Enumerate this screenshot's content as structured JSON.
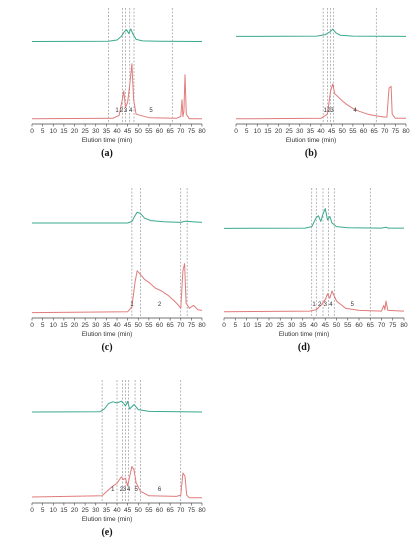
{
  "colors": {
    "trace_top": "#3aa88f",
    "trace_bottom": "#e07b7b",
    "divider": "#888888",
    "axis": "#444444"
  },
  "chart_data": [
    {
      "type": "line",
      "panel_label": "(a)",
      "xlabel": "Elution time (min)",
      "xlim": [
        0,
        80
      ],
      "x_ticks": [
        "0",
        "5",
        "10",
        "15",
        "20",
        "25",
        "30",
        "35",
        "40",
        "45",
        "50",
        "55",
        "60",
        "65",
        "70",
        "75",
        "80"
      ],
      "dividers": [
        36,
        42.5,
        44,
        46,
        48,
        66
      ],
      "fraction_labels": [
        {
          "text": "1",
          "x": 40
        },
        {
          "text": "2",
          "x": 42
        },
        {
          "text": "3",
          "x": 44
        },
        {
          "text": "4",
          "x": 46.5
        },
        {
          "text": "5",
          "x": 56
        }
      ],
      "series": [
        {
          "role": "top",
          "points": [
            [
              0,
              0.55
            ],
            [
              36,
              0.56
            ],
            [
              40,
              0.6
            ],
            [
              42,
              0.72
            ],
            [
              43.5,
              0.88
            ],
            [
              44.5,
              0.94
            ],
            [
              45.5,
              0.82
            ],
            [
              46.5,
              0.97
            ],
            [
              47.5,
              0.8
            ],
            [
              49,
              0.62
            ],
            [
              52,
              0.57
            ],
            [
              60,
              0.56
            ],
            [
              80,
              0.55
            ]
          ]
        },
        {
          "role": "bottom",
          "points": [
            [
              0,
              0.02
            ],
            [
              38,
              0.03
            ],
            [
              41,
              0.08
            ],
            [
              42.5,
              0.35
            ],
            [
              43.2,
              0.5
            ],
            [
              44,
              0.22
            ],
            [
              45,
              0.3
            ],
            [
              46,
              0.6
            ],
            [
              47,
              0.97
            ],
            [
              47.8,
              0.35
            ],
            [
              49,
              0.1
            ],
            [
              55,
              0.04
            ],
            [
              68,
              0.03
            ],
            [
              70,
              0.06
            ],
            [
              70.6,
              0.35
            ],
            [
              71,
              0.06
            ],
            [
              71.5,
              0.15
            ],
            [
              72,
              0.78
            ],
            [
              72.6,
              0.1
            ],
            [
              74,
              0.02
            ],
            [
              80,
              0.02
            ]
          ]
        }
      ]
    },
    {
      "type": "line",
      "panel_label": "(b)",
      "xlabel": "Elution time (min)",
      "xlim": [
        0,
        80
      ],
      "x_ticks": [
        "0",
        "5",
        "10",
        "15",
        "20",
        "25",
        "30",
        "35",
        "40",
        "45",
        "50",
        "55",
        "60",
        "65",
        "70",
        "75",
        "80"
      ],
      "dividers": [
        41,
        43,
        44.5,
        46,
        66
      ],
      "fraction_labels": [
        {
          "text": "1",
          "x": 42
        },
        {
          "text": "2",
          "x": 43.8
        },
        {
          "text": "3",
          "x": 45.2
        },
        {
          "text": "4",
          "x": 56
        }
      ],
      "series": [
        {
          "role": "top",
          "points": [
            [
              0,
              0.72
            ],
            [
              38,
              0.73
            ],
            [
              42,
              0.78
            ],
            [
              44,
              0.86
            ],
            [
              45.5,
              0.96
            ],
            [
              47,
              0.84
            ],
            [
              49,
              0.76
            ],
            [
              55,
              0.73
            ],
            [
              80,
              0.72
            ]
          ]
        },
        {
          "role": "bottom",
          "points": [
            [
              0,
              0.02
            ],
            [
              40,
              0.03
            ],
            [
              43,
              0.1
            ],
            [
              44.5,
              0.5
            ],
            [
              45.5,
              0.62
            ],
            [
              46.5,
              0.45
            ],
            [
              48,
              0.4
            ],
            [
              50,
              0.33
            ],
            [
              52,
              0.27
            ],
            [
              55,
              0.2
            ],
            [
              58,
              0.15
            ],
            [
              62,
              0.1
            ],
            [
              66,
              0.07
            ],
            [
              70,
              0.05
            ],
            [
              71,
              0.05
            ],
            [
              72,
              0.55
            ],
            [
              73,
              0.58
            ],
            [
              73.5,
              0.1
            ],
            [
              75,
              0.03
            ],
            [
              80,
              0.03
            ]
          ]
        }
      ]
    },
    {
      "type": "line",
      "panel_label": "(c)",
      "xlabel": "Elution time (min)",
      "xlim": [
        0,
        80
      ],
      "x_ticks": [
        "0",
        "5",
        "10",
        "15",
        "20",
        "25",
        "30",
        "35",
        "40",
        "45",
        "50",
        "55",
        "60",
        "65",
        "70",
        "75",
        "80"
      ],
      "dividers": [
        47,
        51,
        70,
        73
      ],
      "fraction_labels": [
        {
          "text": "1",
          "x": 47
        },
        {
          "text": "2",
          "x": 60
        }
      ],
      "series": [
        {
          "role": "top",
          "points": [
            [
              0,
              0.5
            ],
            [
              45,
              0.5
            ],
            [
              47,
              0.55
            ],
            [
              48.5,
              0.75
            ],
            [
              49.5,
              0.86
            ],
            [
              51,
              0.82
            ],
            [
              53,
              0.66
            ],
            [
              56,
              0.58
            ],
            [
              62,
              0.54
            ],
            [
              70,
              0.52
            ],
            [
              72,
              0.56
            ],
            [
              80,
              0.52
            ]
          ]
        },
        {
          "role": "bottom",
          "points": [
            [
              0,
              0.02
            ],
            [
              45,
              0.03
            ],
            [
              47,
              0.1
            ],
            [
              48.5,
              0.45
            ],
            [
              49.5,
              0.6
            ],
            [
              51,
              0.55
            ],
            [
              53,
              0.48
            ],
            [
              55,
              0.44
            ],
            [
              58,
              0.36
            ],
            [
              61,
              0.32
            ],
            [
              64,
              0.26
            ],
            [
              67,
              0.18
            ],
            [
              69,
              0.12
            ],
            [
              70,
              0.08
            ],
            [
              71,
              0.6
            ],
            [
              71.8,
              0.7
            ],
            [
              72.5,
              0.15
            ],
            [
              74,
              0.08
            ],
            [
              76,
              0.12
            ],
            [
              78,
              0.06
            ],
            [
              80,
              0.05
            ]
          ]
        }
      ]
    },
    {
      "type": "line",
      "panel_label": "(d)",
      "xlabel": "Elution time (min)",
      "xlim": [
        0,
        80
      ],
      "x_ticks": [
        "0",
        "5",
        "10",
        "15",
        "20",
        "25",
        "30",
        "35",
        "40",
        "45",
        "50",
        "55",
        "60",
        "65",
        "70",
        "75",
        "80"
      ],
      "dividers": [
        39,
        41,
        44,
        46.5,
        49,
        65
      ],
      "fraction_labels": [
        {
          "text": "1",
          "x": 40
        },
        {
          "text": "2",
          "x": 42.5
        },
        {
          "text": "3",
          "x": 45
        },
        {
          "text": "4",
          "x": 47.5
        },
        {
          "text": "5",
          "x": 57
        }
      ],
      "series": [
        {
          "role": "top",
          "points": [
            [
              0,
              0.32
            ],
            [
              36,
              0.33
            ],
            [
              39,
              0.38
            ],
            [
              41,
              0.68
            ],
            [
              42,
              0.74
            ],
            [
              43,
              0.55
            ],
            [
              44,
              0.8
            ],
            [
              45,
              0.98
            ],
            [
              46,
              0.6
            ],
            [
              47,
              0.72
            ],
            [
              48,
              0.5
            ],
            [
              50,
              0.38
            ],
            [
              55,
              0.34
            ],
            [
              70,
              0.33
            ],
            [
              72,
              0.36
            ],
            [
              73,
              0.33
            ],
            [
              80,
              0.33
            ]
          ]
        },
        {
          "role": "bottom",
          "points": [
            [
              0,
              0.03
            ],
            [
              38,
              0.04
            ],
            [
              41,
              0.06
            ],
            [
              43,
              0.12
            ],
            [
              45,
              0.2
            ],
            [
              46,
              0.28
            ],
            [
              47,
              0.22
            ],
            [
              48,
              0.32
            ],
            [
              50,
              0.18
            ],
            [
              54,
              0.08
            ],
            [
              60,
              0.05
            ],
            [
              70,
              0.04
            ],
            [
              71,
              0.12
            ],
            [
              71.5,
              0.06
            ],
            [
              72,
              0.18
            ],
            [
              72.8,
              0.05
            ],
            [
              80,
              0.04
            ]
          ]
        }
      ]
    },
    {
      "type": "line",
      "panel_label": "(e)",
      "xlabel": "Elution time (min)",
      "xlim": [
        0,
        80
      ],
      "x_ticks": [
        "0",
        "5",
        "10",
        "15",
        "20",
        "25",
        "30",
        "35",
        "40",
        "45",
        "50",
        "55",
        "60",
        "65",
        "70",
        "75",
        "80"
      ],
      "dividers": [
        33,
        40,
        42.5,
        44,
        45.5,
        48.5,
        51,
        70
      ],
      "fraction_labels": [
        {
          "text": "1",
          "x": 38
        },
        {
          "text": "2",
          "x": 42
        },
        {
          "text": "3",
          "x": 43.5
        },
        {
          "text": "4",
          "x": 45.5
        },
        {
          "text": "5",
          "x": 49
        },
        {
          "text": "6",
          "x": 60
        }
      ],
      "series": [
        {
          "role": "top",
          "points": [
            [
              0,
              0.6
            ],
            [
              32,
              0.61
            ],
            [
              34,
              0.7
            ],
            [
              36,
              0.88
            ],
            [
              38,
              0.94
            ],
            [
              40,
              0.9
            ],
            [
              42,
              0.96
            ],
            [
              43,
              0.9
            ],
            [
              44,
              0.8
            ],
            [
              45,
              0.95
            ],
            [
              46,
              0.7
            ],
            [
              48,
              0.85
            ],
            [
              50,
              0.68
            ],
            [
              55,
              0.62
            ],
            [
              70,
              0.61
            ],
            [
              80,
              0.6
            ]
          ]
        },
        {
          "role": "bottom",
          "points": [
            [
              0,
              0.03
            ],
            [
              33,
              0.05
            ],
            [
              36,
              0.14
            ],
            [
              38,
              0.2
            ],
            [
              40,
              0.24
            ],
            [
              42,
              0.34
            ],
            [
              43,
              0.3
            ],
            [
              44,
              0.32
            ],
            [
              45,
              0.2
            ],
            [
              46,
              0.35
            ],
            [
              47,
              0.5
            ],
            [
              48,
              0.45
            ],
            [
              49,
              0.25
            ],
            [
              51,
              0.12
            ],
            [
              55,
              0.05
            ],
            [
              68,
              0.04
            ],
            [
              70,
              0.06
            ],
            [
              71,
              0.4
            ],
            [
              72,
              0.35
            ],
            [
              72.8,
              0.06
            ],
            [
              74,
              0.02
            ],
            [
              80,
              0.02
            ]
          ]
        }
      ]
    }
  ]
}
